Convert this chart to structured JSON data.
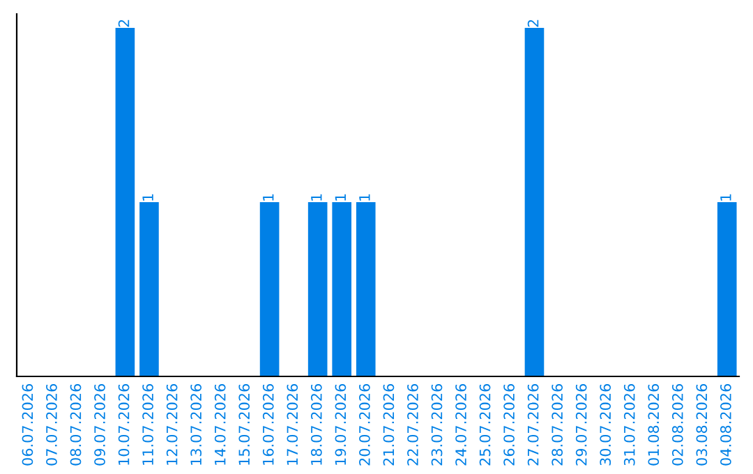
{
  "chart_data": {
    "type": "bar",
    "categories": [
      "06.07.2026",
      "07.07.2026",
      "08.07.2026",
      "09.07.2026",
      "10.07.2026",
      "11.07.2026",
      "12.07.2026",
      "13.07.2026",
      "14.07.2026",
      "15.07.2026",
      "16.07.2026",
      "17.07.2026",
      "18.07.2026",
      "19.07.2026",
      "20.07.2026",
      "21.07.2026",
      "22.07.2026",
      "23.07.2026",
      "24.07.2026",
      "25.07.2026",
      "26.07.2026",
      "27.07.2026",
      "28.07.2026",
      "29.07.2026",
      "30.07.2026",
      "31.07.2026",
      "01.08.2026",
      "02.08.2026",
      "03.08.2026",
      "04.08.2026"
    ],
    "values": [
      0,
      0,
      0,
      0,
      2,
      1,
      0,
      0,
      0,
      0,
      1,
      0,
      1,
      1,
      1,
      0,
      0,
      0,
      0,
      0,
      0,
      2,
      0,
      0,
      0,
      0,
      0,
      0,
      0,
      1
    ],
    "value_labels": [
      null,
      null,
      null,
      null,
      "2",
      "1",
      null,
      null,
      null,
      null,
      "1",
      null,
      "1",
      "1",
      "1",
      null,
      null,
      null,
      null,
      null,
      null,
      "2",
      null,
      null,
      null,
      null,
      null,
      null,
      null,
      "1"
    ],
    "color": "#0080e6",
    "ylim": [
      0,
      2.08
    ],
    "tick_labels": "x",
    "grid": false
  }
}
